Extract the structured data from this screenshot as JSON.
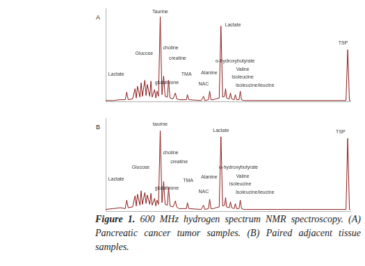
{
  "figure": {
    "caption_label": "Figure 1.",
    "caption": "600 MHz hydrogen spectrum NMR spectroscopy. (A) Pancreatic cancer tumor samples. (B) Paired adjacent tissue samples."
  },
  "chart_data": [
    {
      "type": "line",
      "title": "A",
      "color": "#8b1a1a",
      "grid": false,
      "tick_labels": false,
      "xlim": [
        0,
        100
      ],
      "ylim": [
        0,
        110
      ],
      "x": [
        0,
        3,
        6,
        8,
        8.6,
        9.2,
        11,
        12,
        12.5,
        13,
        14,
        14.5,
        15,
        16,
        16.5,
        17,
        18,
        18.5,
        19,
        20,
        20.5,
        21,
        21.6,
        22.3,
        23,
        23.7,
        24.3,
        25.2,
        25.7,
        26.3,
        27.5,
        28.5,
        29,
        30,
        33,
        33.4,
        34,
        39,
        40,
        40.5,
        42,
        42.5,
        43,
        44,
        45,
        46.4,
        47.1,
        47.8,
        48.6,
        49,
        49.4,
        50.5,
        51,
        51.5,
        52.5,
        53,
        53.5,
        54.5,
        55,
        55.5,
        56.5,
        57.5,
        60,
        70,
        80,
        90,
        98.2,
        98.9,
        99.6,
        100
      ],
      "values": [
        1,
        1,
        2,
        2,
        11,
        2,
        3,
        15,
        4,
        18,
        5,
        22,
        6,
        25,
        7,
        20,
        6,
        24,
        5,
        14,
        4,
        12,
        6,
        100,
        8,
        30,
        6,
        5,
        25,
        4,
        3,
        10,
        3,
        2,
        2,
        8,
        2,
        1,
        6,
        1,
        2,
        12,
        2,
        2,
        3,
        4,
        89,
        5,
        6,
        15,
        4,
        3,
        10,
        3,
        2,
        8,
        2,
        2,
        12,
        2,
        1,
        1,
        1,
        1,
        1,
        1,
        1,
        61,
        1,
        1
      ],
      "annotations": [
        {
          "text": "Lactate",
          "x": 4.3,
          "y": 29
        },
        {
          "text": "Glucose",
          "x": 15.7,
          "y": 54
        },
        {
          "text": "Taurine",
          "x": 22.3,
          "y": 103
        },
        {
          "text": "choline",
          "x": 26.6,
          "y": 60
        },
        {
          "text": "creatine",
          "x": 29.4,
          "y": 48
        },
        {
          "text": "glutathione",
          "x": 25,
          "y": 19
        },
        {
          "text": "TMA",
          "x": 33,
          "y": 29
        },
        {
          "text": "NAC",
          "x": 40,
          "y": 18
        },
        {
          "text": "Alanine",
          "x": 42.3,
          "y": 31
        },
        {
          "text": "Lactate",
          "x": 52,
          "y": 87
        },
        {
          "text": "α-hydroxybutyrate",
          "x": 52.9,
          "y": 45
        },
        {
          "text": "Valine",
          "x": 56,
          "y": 35
        },
        {
          "text": "Isoleucine",
          "x": 56,
          "y": 26
        },
        {
          "text": "Isoleucine/leucine",
          "x": 61,
          "y": 16
        },
        {
          "text": "TSP",
          "x": 97,
          "y": 66
        }
      ]
    },
    {
      "type": "line",
      "title": "B",
      "color": "#8b1a1a",
      "grid": false,
      "tick_labels": false,
      "xlim": [
        0,
        100
      ],
      "ylim": [
        0,
        110
      ],
      "x": [
        0,
        3,
        6,
        8,
        8.6,
        9.2,
        11,
        12,
        12.5,
        13,
        14,
        14.5,
        15,
        16,
        16.5,
        17,
        18,
        18.5,
        19,
        20,
        20.5,
        21,
        21.6,
        22.3,
        23,
        23.7,
        24.3,
        25.2,
        25.7,
        26.3,
        27.5,
        28.5,
        29,
        30,
        33,
        33.4,
        34,
        39,
        40,
        40.5,
        42,
        42.5,
        43,
        44,
        45,
        46.4,
        47.1,
        47.8,
        48.6,
        49,
        49.4,
        50.5,
        51,
        51.5,
        52.5,
        53,
        53.5,
        54.5,
        55,
        55.5,
        56.5,
        57.5,
        60,
        70,
        80,
        90,
        98.2,
        98.9,
        99.6,
        100
      ],
      "values": [
        2,
        3,
        4,
        3,
        13,
        4,
        5,
        18,
        6,
        20,
        7,
        24,
        8,
        22,
        9,
        19,
        8,
        21,
        7,
        15,
        6,
        13,
        8,
        95,
        10,
        35,
        8,
        7,
        28,
        6,
        5,
        12,
        5,
        3,
        3,
        10,
        3,
        2,
        7,
        2,
        3,
        14,
        3,
        3,
        4,
        5,
        88,
        6,
        7,
        16,
        5,
        4,
        11,
        4,
        3,
        9,
        3,
        3,
        13,
        3,
        2,
        2,
        2,
        2,
        2,
        2,
        2,
        86,
        2,
        2
      ],
      "annotations": [
        {
          "text": "Lactate",
          "x": 4.3,
          "y": 35
        },
        {
          "text": "Glucose",
          "x": 14.3,
          "y": 49
        },
        {
          "text": "taurine",
          "x": 22.3,
          "y": 100
        },
        {
          "text": "choline",
          "x": 26.6,
          "y": 66
        },
        {
          "text": "creatine",
          "x": 30,
          "y": 55
        },
        {
          "text": "TMA",
          "x": 33.7,
          "y": 33
        },
        {
          "text": "glutathione",
          "x": 25,
          "y": 24
        },
        {
          "text": "NAC",
          "x": 40,
          "y": 20
        },
        {
          "text": "Alanine",
          "x": 42.3,
          "y": 37
        },
        {
          "text": "Lactate",
          "x": 47.1,
          "y": 92
        },
        {
          "text": "α-hydroxybutyrate",
          "x": 54.3,
          "y": 49
        },
        {
          "text": "Valine",
          "x": 56,
          "y": 38
        },
        {
          "text": "Isoleucine",
          "x": 55,
          "y": 29
        },
        {
          "text": "Isoleucine/leucine",
          "x": 61,
          "y": 19
        },
        {
          "text": "TSP",
          "x": 96,
          "y": 91
        }
      ]
    }
  ]
}
